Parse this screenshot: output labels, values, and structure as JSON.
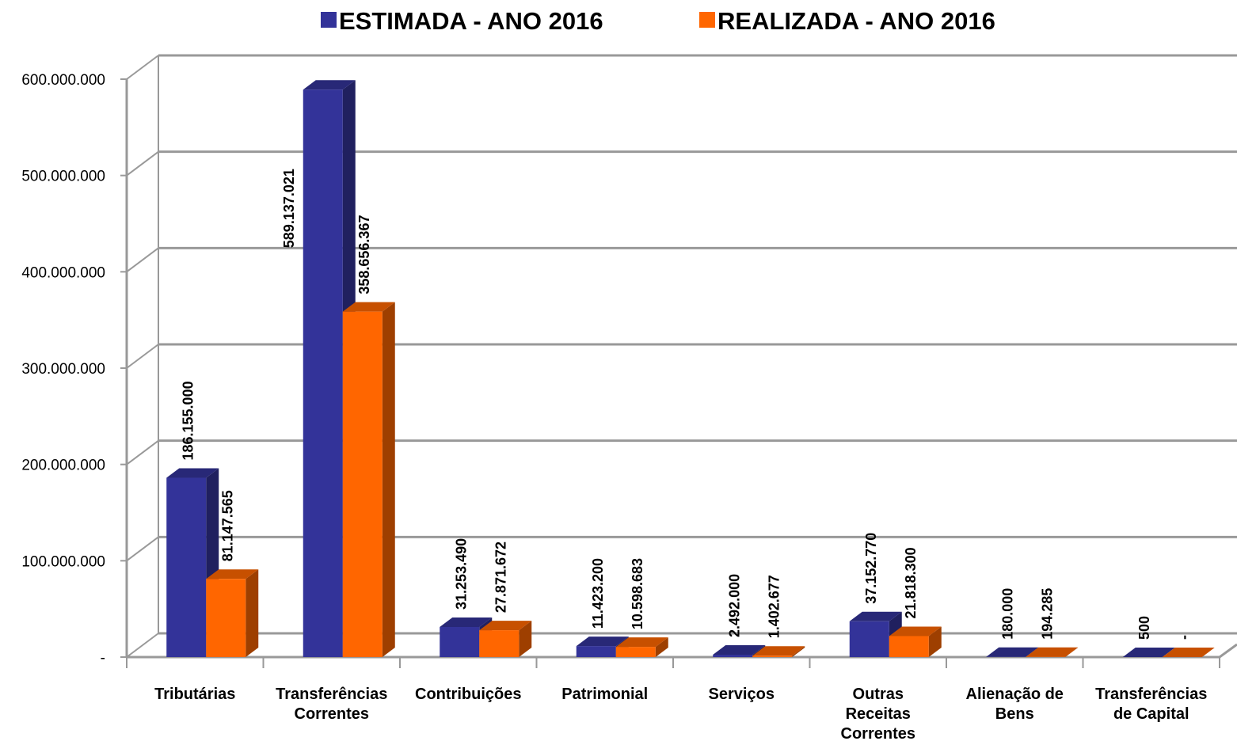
{
  "chart_data": {
    "type": "bar3d",
    "categories": [
      "Tributárias",
      "Transferências\nCorrentes",
      "Contribuições",
      "Patrimonial",
      "Serviços",
      "Outras\nReceitas\nCorrentes",
      "Alienação de\nBens",
      "Transferências\nde Capital"
    ],
    "series": [
      {
        "name": "ESTIMADA - ANO 2016",
        "color": "#333399",
        "values": [
          186155000,
          589137021,
          31253490,
          11423200,
          2492000,
          37152770,
          180000,
          500
        ],
        "value_labels": [
          "186.155.000",
          "589.137.021",
          "31.253.490",
          "11.423.200",
          "2.492.000",
          "37.152.770",
          "180.000",
          "500"
        ]
      },
      {
        "name": "REALIZADA - ANO 2016",
        "color": "#ff6600",
        "values": [
          81147565,
          358656367,
          27871672,
          10598683,
          1402677,
          21818300,
          194285,
          0
        ],
        "value_labels": [
          "81.147.565",
          "358.656.367",
          "27.871.672",
          "10.598.683",
          "1.402.677",
          "21.818.300",
          "194.285",
          "-"
        ]
      }
    ],
    "ylim": [
      0,
      600000000
    ],
    "yticks": [
      {
        "value": 0,
        "label": "-"
      },
      {
        "value": 100000000,
        "label": "100.000.000"
      },
      {
        "value": 200000000,
        "label": "200.000.000"
      },
      {
        "value": 300000000,
        "label": "300.000.000"
      },
      {
        "value": 400000000,
        "label": "400.000.000"
      },
      {
        "value": 500000000,
        "label": "500.000.000"
      },
      {
        "value": 600000000,
        "label": "600.000.000"
      }
    ],
    "grid": true,
    "legend": "top"
  }
}
